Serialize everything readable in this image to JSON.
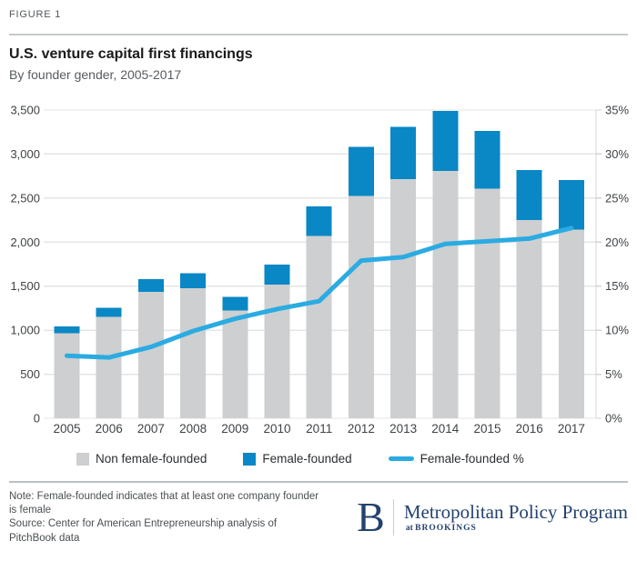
{
  "figure_label": "FIGURE 1",
  "header": {
    "title": "U.S. venture capital first financings",
    "subtitle": "By founder gender, 2005-2017"
  },
  "chart_data": {
    "type": "bar",
    "subtype": "stacked-bar-with-line-overlay",
    "title": "U.S. venture capital first financings",
    "subtitle": "By founder gender, 2005-2017",
    "categories": [
      "2005",
      "2006",
      "2007",
      "2008",
      "2009",
      "2010",
      "2011",
      "2012",
      "2013",
      "2014",
      "2015",
      "2016",
      "2017"
    ],
    "series": [
      {
        "name": "Non female-founded",
        "type": "bar",
        "axis": "left",
        "color": "#cdcfd0",
        "values": [
          965,
          1150,
          1435,
          1475,
          1225,
          1520,
          2070,
          2525,
          2715,
          2810,
          2605,
          2250,
          2140
        ]
      },
      {
        "name": "Female-founded",
        "type": "bar",
        "axis": "left",
        "color": "#0a87c5",
        "values": [
          80,
          105,
          145,
          170,
          155,
          225,
          335,
          555,
          595,
          680,
          655,
          570,
          565
        ]
      },
      {
        "name": "Female-founded %",
        "type": "line",
        "axis": "right",
        "color": "#2aabe2",
        "values": [
          7.1,
          6.9,
          8.1,
          9.9,
          11.3,
          12.4,
          13.3,
          17.9,
          18.3,
          19.8,
          20.1,
          20.4,
          21.6
        ]
      }
    ],
    "left_axis": {
      "min": 0,
      "max": 3500,
      "step": 500,
      "tick_labels": [
        "0",
        "500",
        "1,000",
        "1,500",
        "2,000",
        "2,500",
        "3,000",
        "3,500"
      ]
    },
    "right_axis": {
      "min": 0,
      "max": 35,
      "step": 5,
      "unit": "%",
      "tick_labels": [
        "0%",
        "5%",
        "10%",
        "15%",
        "20%",
        "25%",
        "30%",
        "35%"
      ]
    },
    "grid": true,
    "legend_position": "bottom"
  },
  "legend": {
    "items": [
      {
        "label": "Non female-founded",
        "swatch": "square",
        "color": "#cdcfd0"
      },
      {
        "label": "Female-founded",
        "swatch": "square",
        "color": "#0a87c5"
      },
      {
        "label": "Female-founded %",
        "swatch": "line",
        "color": "#2aabe2"
      }
    ]
  },
  "footer": {
    "note": "Note: Female-founded indicates that at least one company founder is female",
    "source": "Source: Center for American Entrepreneurship analysis of PitchBook data",
    "logo": {
      "initial": "B",
      "program": "Metropolitan Policy Program",
      "tagline_prefix": "at",
      "tagline": "BROOKINGS"
    }
  },
  "colors": {
    "grid_line": "#e4e5e6",
    "axis_line": "#d2d4d5",
    "axis_text": "#3f4346",
    "brand_navy": "#24426e"
  }
}
